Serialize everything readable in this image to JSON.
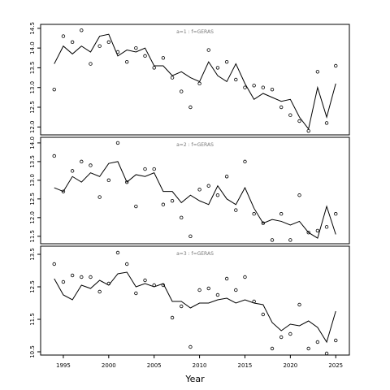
{
  "chart_data": {
    "type": "line",
    "xlabel": "Year",
    "x": [
      1994,
      1995,
      1996,
      1997,
      1998,
      1999,
      2000,
      2001,
      2002,
      2003,
      2004,
      2005,
      2006,
      2007,
      2008,
      2009,
      2010,
      2011,
      2012,
      2013,
      2014,
      2015,
      2016,
      2017,
      2018,
      2019,
      2020,
      2021,
      2022,
      2023,
      2024,
      2025
    ],
    "xticks": [
      1995,
      2000,
      2005,
      2010,
      2015,
      2020,
      2025
    ],
    "xlim": [
      1992.5,
      2026.5
    ],
    "panels": [
      {
        "title": "a=1 : f=GERAS",
        "ylim": [
          11.8,
          14.6
        ],
        "yticks": [
          "12.0",
          "12.5",
          "13.0",
          "13.5",
          "14.0",
          "14.5"
        ],
        "line": [
          13.6,
          14.05,
          13.85,
          14.05,
          13.9,
          14.3,
          14.35,
          13.8,
          13.95,
          13.9,
          14.0,
          13.55,
          13.55,
          13.3,
          13.4,
          13.25,
          13.15,
          13.65,
          13.3,
          13.15,
          13.6,
          13.1,
          12.7,
          12.85,
          12.75,
          12.65,
          12.7,
          12.25,
          11.95,
          13.0,
          12.25,
          13.1
        ],
        "points": [
          12.95,
          14.3,
          14.15,
          14.45,
          13.6,
          14.05,
          14.15,
          13.9,
          13.65,
          14.0,
          13.8,
          13.5,
          13.75,
          13.25,
          12.9,
          12.5,
          13.1,
          13.95,
          13.5,
          13.65,
          13.2,
          13.0,
          13.05,
          13.0,
          12.95,
          12.5,
          12.3,
          12.15,
          11.9,
          13.4,
          12.1,
          13.55
        ]
      },
      {
        "title": "a=2 : f=GERAS",
        "ylim": [
          11.3,
          14.15
        ],
        "yticks": [
          "11.5",
          "12.0",
          "12.5",
          "13.0",
          "13.5",
          "14.0"
        ],
        "line": [
          12.8,
          12.7,
          13.1,
          12.95,
          13.2,
          13.1,
          13.45,
          13.5,
          12.95,
          13.15,
          13.1,
          13.2,
          12.7,
          12.7,
          12.4,
          12.6,
          12.45,
          12.35,
          12.85,
          12.5,
          12.35,
          12.8,
          12.25,
          11.85,
          11.95,
          11.9,
          11.8,
          11.9,
          11.6,
          11.45,
          12.3,
          11.55
        ],
        "points": [
          13.65,
          12.7,
          13.25,
          13.5,
          13.4,
          12.55,
          13.0,
          14.0,
          12.95,
          12.3,
          13.3,
          13.3,
          12.35,
          12.45,
          12.0,
          11.5,
          12.75,
          12.85,
          12.6,
          13.1,
          12.2,
          13.5,
          12.1,
          11.85,
          11.4,
          12.1,
          11.4,
          12.6,
          11.6,
          11.65,
          11.75,
          12.1
        ]
      },
      {
        "title": "a=3 : f=GERAS",
        "ylim": [
          10.4,
          13.75
        ],
        "yticks": [
          "10.5",
          "11.5",
          "12.5",
          "13.5"
        ],
        "line": [
          12.75,
          12.25,
          12.1,
          12.55,
          12.45,
          12.7,
          12.55,
          12.9,
          12.95,
          12.5,
          12.6,
          12.5,
          12.6,
          12.05,
          12.05,
          11.85,
          12.0,
          12.0,
          12.1,
          12.15,
          12.0,
          12.1,
          12.0,
          11.95,
          11.4,
          11.15,
          11.35,
          11.3,
          11.45,
          11.25,
          10.8,
          11.75
        ],
        "points": [
          13.2,
          12.65,
          12.85,
          12.8,
          12.8,
          12.35,
          12.6,
          13.55,
          13.2,
          12.3,
          12.7,
          12.55,
          12.55,
          11.55,
          11.9,
          10.65,
          12.4,
          12.45,
          12.25,
          12.75,
          12.4,
          12.8,
          12.05,
          11.65,
          10.6,
          10.95,
          11.05,
          11.95,
          10.6,
          10.8,
          10.45,
          10.85
        ]
      }
    ]
  }
}
